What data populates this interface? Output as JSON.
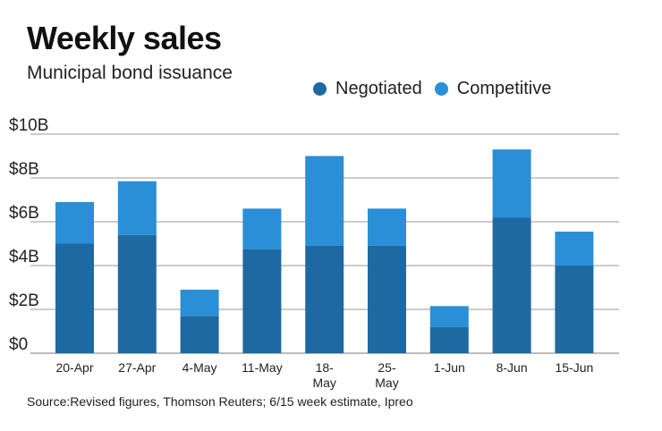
{
  "title": "Weekly sales",
  "subtitle": "Municipal bond issuance",
  "source": "Source:Revised figures, Thomson Reuters; 6/15 week estimate, Ipreo",
  "colors": {
    "negotiated": "#1e69a2",
    "competitive": "#2a8fd6",
    "grid": "#9a9a9a"
  },
  "legend": [
    {
      "label": "Negotiated",
      "color": "#1e69a2"
    },
    {
      "label": "Competitive",
      "color": "#2a8fd6"
    }
  ],
  "chart_data": {
    "type": "bar",
    "stacked": true,
    "categories": [
      "20-Apr",
      "27-Apr",
      "4-May",
      "11-May",
      "18-May",
      "25-May",
      "1-Jun",
      "8-Jun",
      "15-Jun"
    ],
    "category_labels": [
      [
        "20-Apr"
      ],
      [
        "27-Apr"
      ],
      [
        "4-May"
      ],
      [
        "11-May"
      ],
      [
        "18-",
        "May"
      ],
      [
        "25-",
        "May"
      ],
      [
        "1-Jun"
      ],
      [
        "8-Jun"
      ],
      [
        "15-Jun"
      ]
    ],
    "series": [
      {
        "name": "Negotiated",
        "values": [
          5.0,
          5.4,
          1.7,
          4.75,
          4.9,
          4.9,
          1.2,
          6.2,
          4.0
        ]
      },
      {
        "name": "Competitive",
        "values": [
          1.9,
          2.45,
          1.2,
          1.85,
          4.1,
          1.7,
          0.95,
          3.1,
          1.55
        ]
      }
    ],
    "yticks": [
      0,
      2,
      4,
      6,
      8,
      10
    ],
    "ytick_labels": [
      "$0",
      "$2B",
      "$4B",
      "$6B",
      "$8B",
      "$10B"
    ],
    "ylim": [
      0,
      10
    ],
    "grid": true,
    "legend_position": "top-right"
  }
}
